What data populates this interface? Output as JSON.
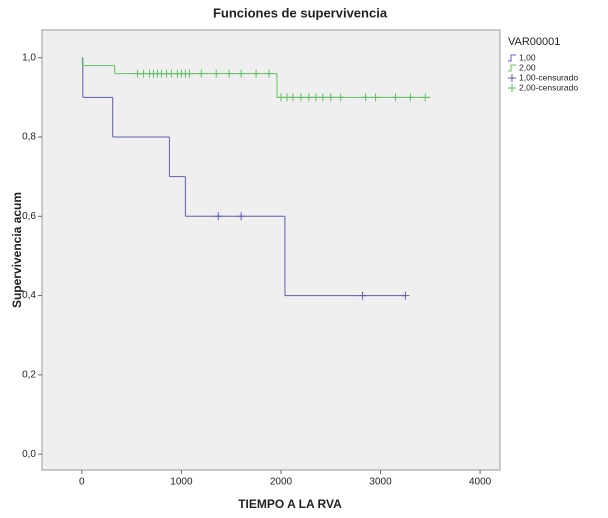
{
  "chart_data": {
    "type": "survival",
    "title": "Funciones de supervivencia",
    "x_label": "TIEMPO A LA RVA",
    "y_label": "Supervivencia acum",
    "legend_title": "VAR00001",
    "legend_position": "right",
    "xlim": [
      -400,
      4200
    ],
    "ylim": [
      -0.04,
      1.07
    ],
    "xticks": [
      0,
      1000,
      2000,
      3000,
      4000
    ],
    "yticks": [
      {
        "value": 0,
        "label": "0,0"
      },
      {
        "value": 0.2,
        "label": "0,2"
      },
      {
        "value": 0.4,
        "label": "0,4"
      },
      {
        "value": 0.6,
        "label": "0,6"
      },
      {
        "value": 0.8,
        "label": "0,8"
      },
      {
        "value": 1,
        "label": "1,0"
      }
    ],
    "series": [
      {
        "name": "1,00",
        "color": "#5b5fa8",
        "x": [
          0,
          10,
          310,
          880,
          1040,
          2040,
          3250
        ],
        "values": [
          1.0,
          0.9,
          0.8,
          0.7,
          0.6,
          0.4,
          0.4
        ]
      },
      {
        "name": "2,00",
        "color": "#63c063",
        "x": [
          0,
          5,
          330,
          1960,
          3500
        ],
        "values": [
          1.0,
          0.98,
          0.96,
          0.9,
          0.9
        ]
      },
      {
        "name": "1,00-censurado",
        "color": "#5b5fa8",
        "marker": "plus",
        "x": [
          1370,
          1600,
          2820,
          3250
        ],
        "values": [
          0.6,
          0.6,
          0.4,
          0.4
        ]
      },
      {
        "name": "2,00-censurado",
        "color": "#63c063",
        "marker": "plus",
        "x": [
          560,
          620,
          680,
          720,
          760,
          800,
          850,
          900,
          960,
          1000,
          1040,
          1080,
          1200,
          1350,
          1480,
          1600,
          1750,
          1880,
          2000,
          2060,
          2120,
          2200,
          2280,
          2350,
          2420,
          2500,
          2600,
          2850,
          2950,
          3150,
          3300,
          3450
        ],
        "values": [
          0.96,
          0.96,
          0.96,
          0.96,
          0.96,
          0.96,
          0.96,
          0.96,
          0.96,
          0.96,
          0.96,
          0.96,
          0.96,
          0.96,
          0.96,
          0.96,
          0.96,
          0.96,
          0.9,
          0.9,
          0.9,
          0.9,
          0.9,
          0.9,
          0.9,
          0.9,
          0.9,
          0.9,
          0.9,
          0.9,
          0.9,
          0.9
        ]
      }
    ]
  }
}
